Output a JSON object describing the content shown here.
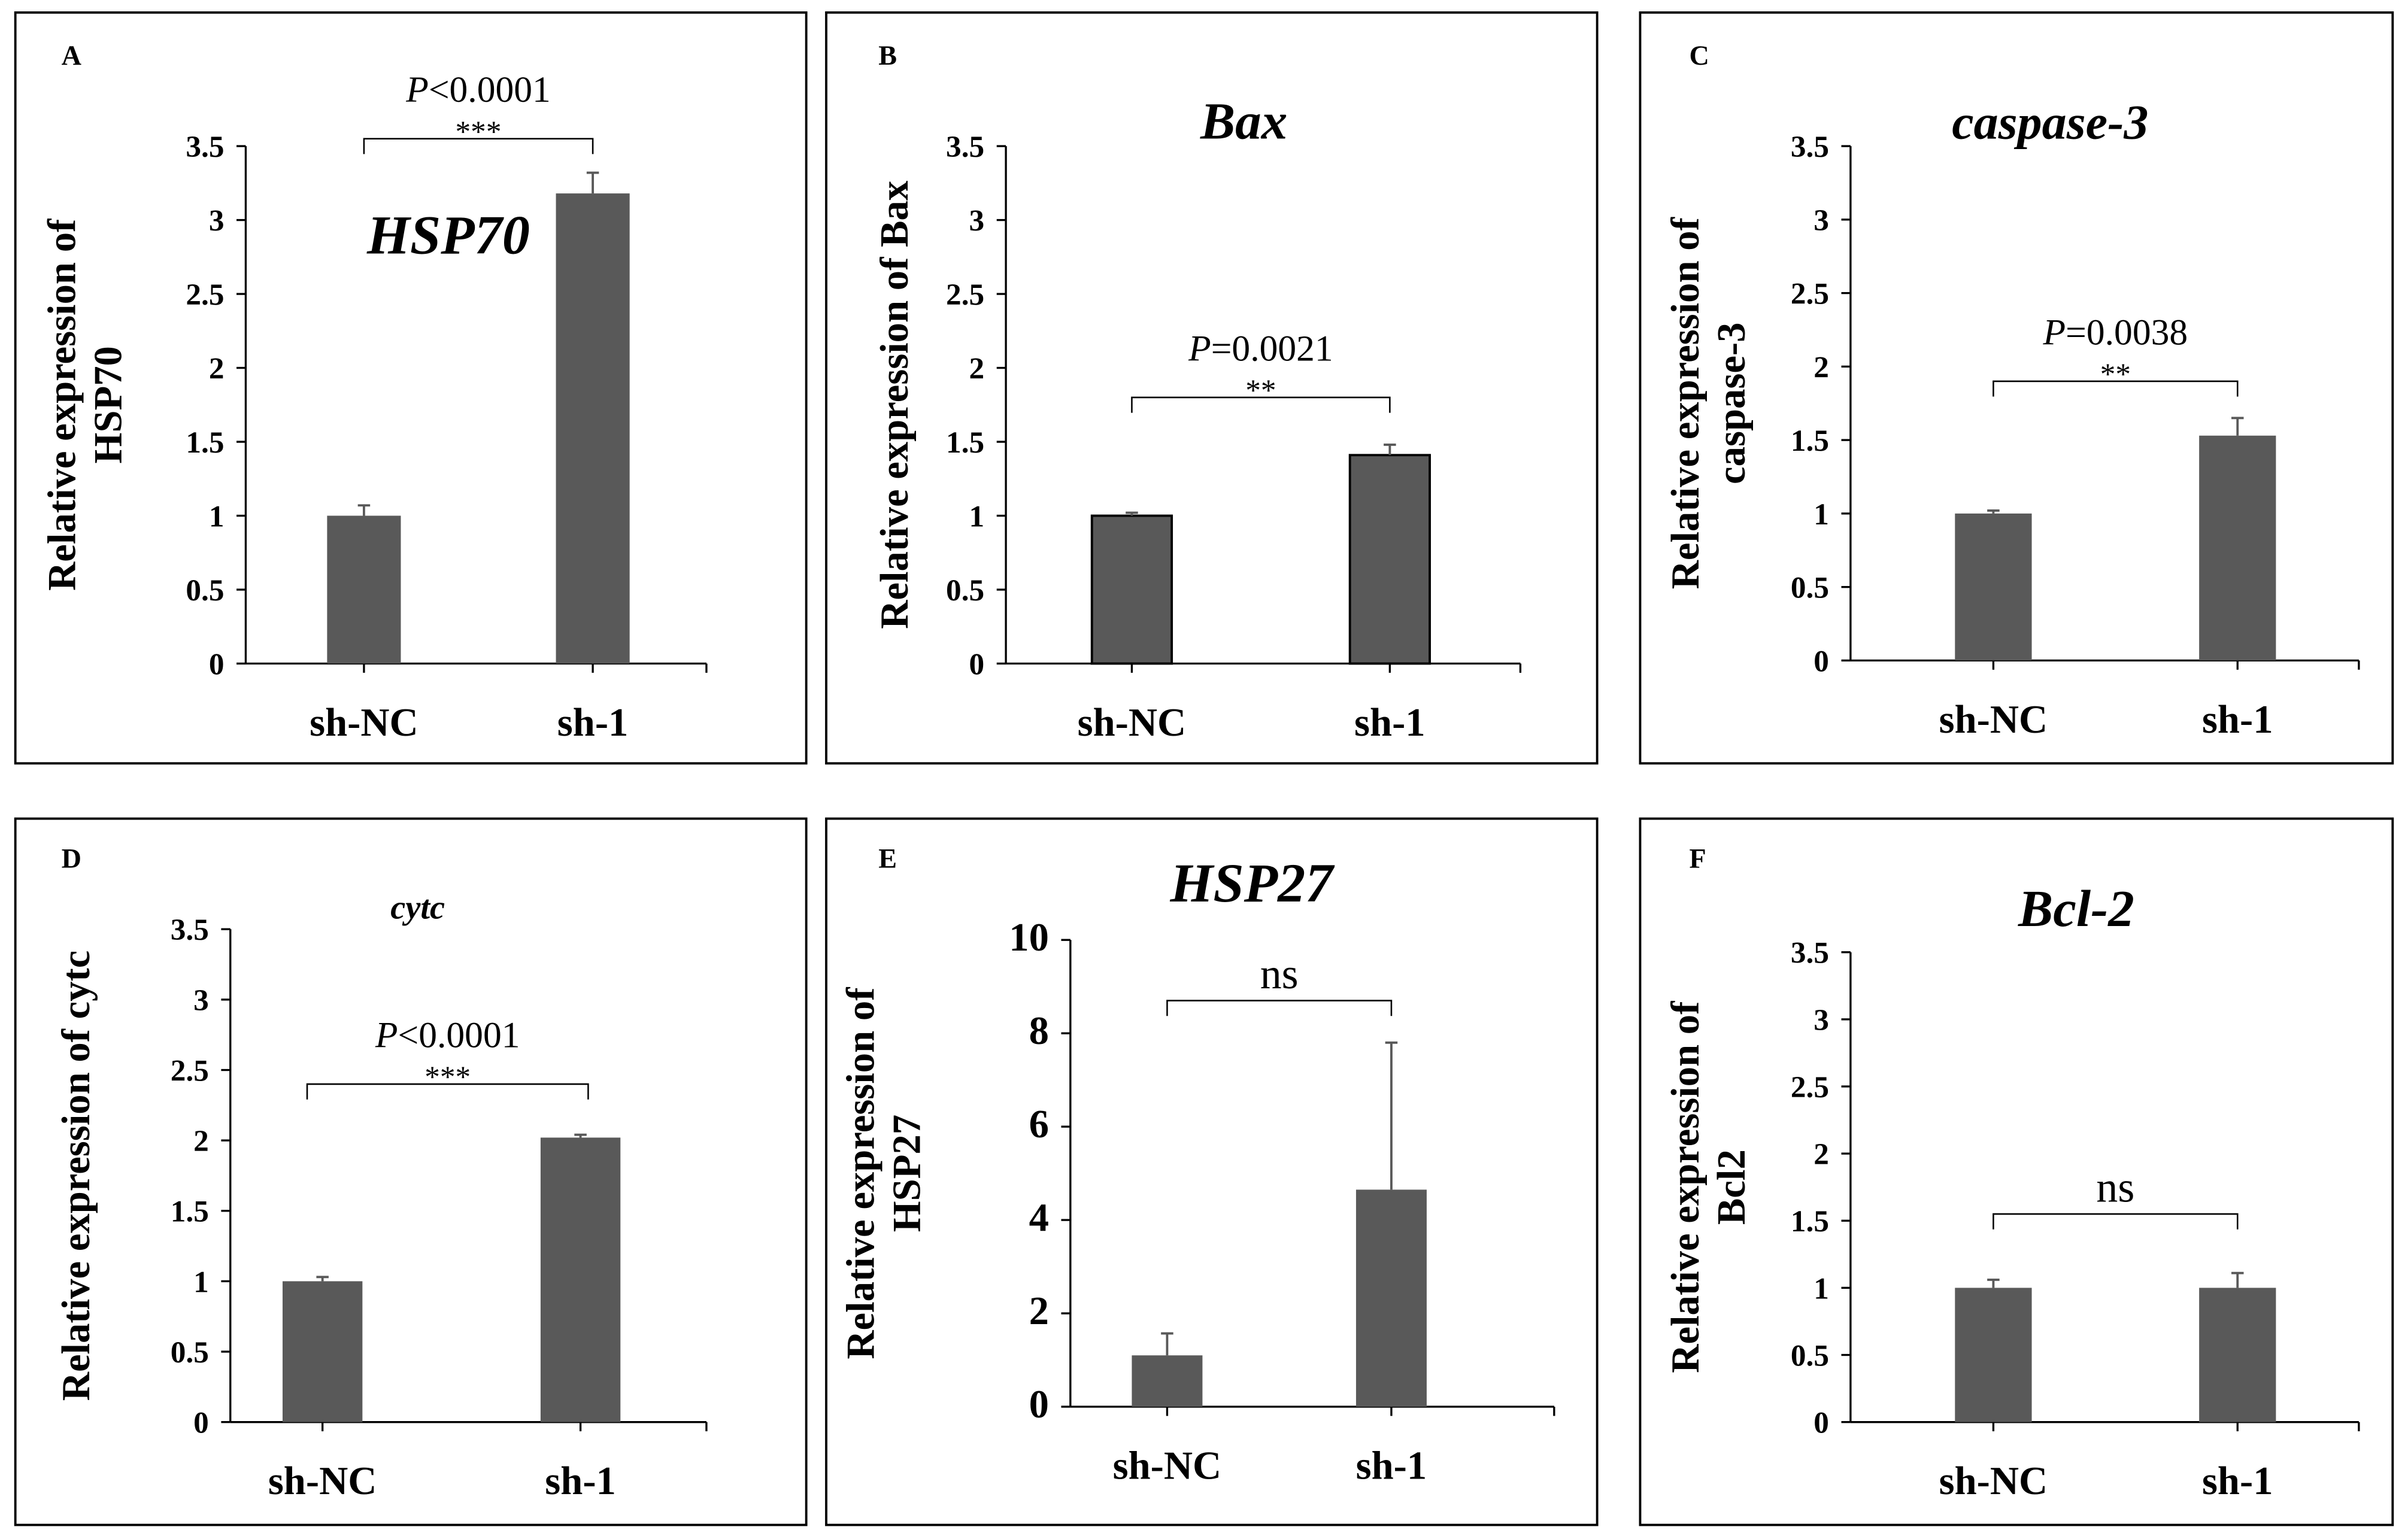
{
  "chart_data": [
    {
      "panel": "A",
      "type": "bar",
      "title": "HSP70",
      "ylabel": [
        "Relative expression of",
        "HSP70"
      ],
      "categories": [
        "sh-NC",
        "sh-1"
      ],
      "values": [
        1.0,
        3.18
      ],
      "errors": [
        0.07,
        0.14
      ],
      "ylim": [
        0,
        3.5
      ],
      "yticks": [
        "0",
        "0.5",
        "1",
        "1.5",
        "2",
        "2.5",
        "3",
        "3.5"
      ],
      "significance": {
        "p_prefix": "P",
        "p_value": "<0.0001",
        "stars": "***",
        "bracket_level": 3.55
      },
      "bar_color": "#595959"
    },
    {
      "panel": "B",
      "type": "bar",
      "title": "Bax",
      "ylabel": [
        "Relative expression of Bax"
      ],
      "categories": [
        "sh-NC",
        "sh-1"
      ],
      "values": [
        1.0,
        1.41
      ],
      "errors": [
        0.02,
        0.07
      ],
      "ylim": [
        0,
        3.5
      ],
      "yticks": [
        "0",
        "0.5",
        "1",
        "1.5",
        "2",
        "2.5",
        "3",
        "3.5"
      ],
      "significance": {
        "p_prefix": "P",
        "p_value": "=0.0021",
        "stars": "**",
        "bracket_level": 1.8
      },
      "bar_color": "#595959"
    },
    {
      "panel": "C",
      "type": "bar",
      "title": "caspase-3",
      "ylabel": [
        "Relative expression of",
        "caspase-3"
      ],
      "categories": [
        "sh-NC",
        "sh-1"
      ],
      "values": [
        1.0,
        1.53
      ],
      "errors": [
        0.02,
        0.12
      ],
      "ylim": [
        0,
        3.5
      ],
      "yticks": [
        "0",
        "0.5",
        "1",
        "1.5",
        "2",
        "2.5",
        "3",
        "3.5"
      ],
      "significance": {
        "p_prefix": "P",
        "p_value": "=0.0038",
        "stars": "**",
        "bracket_level": 1.9
      },
      "bar_color": "#595959"
    },
    {
      "panel": "D",
      "type": "bar",
      "title": "cytc",
      "ylabel": [
        "Relative expression of cytc"
      ],
      "categories": [
        "sh-NC",
        "sh-1"
      ],
      "values": [
        1.0,
        2.02
      ],
      "errors": [
        0.03,
        0.02
      ],
      "ylim": [
        0,
        3.5
      ],
      "yticks": [
        "0",
        "0.5",
        "1",
        "1.5",
        "2",
        "2.5",
        "3",
        "3.5"
      ],
      "significance": {
        "p_prefix": "P",
        "p_value": "<0.0001",
        "stars": "***",
        "bracket_level": 2.4
      },
      "bar_color": "#595959"
    },
    {
      "panel": "E",
      "type": "bar",
      "title": "HSP27",
      "ylabel": [
        "Relative expression of",
        "HSP27"
      ],
      "categories": [
        "sh-NC",
        "sh-1"
      ],
      "values": [
        1.1,
        4.65
      ],
      "errors": [
        0.47,
        3.15
      ],
      "ylim": [
        0,
        10
      ],
      "yticks": [
        "0",
        "2",
        "4",
        "6",
        "8",
        "10"
      ],
      "significance": {
        "stars": "ns",
        "bracket_level": 8.7
      },
      "bar_color": "#595959"
    },
    {
      "panel": "F",
      "type": "bar",
      "title": "Bcl-2",
      "ylabel": [
        "Relative expression of",
        "Bcl2"
      ],
      "categories": [
        "sh-NC",
        "sh-1"
      ],
      "values": [
        1.0,
        1.0
      ],
      "errors": [
        0.06,
        0.11
      ],
      "ylim": [
        0,
        3.5
      ],
      "yticks": [
        "0",
        "0.5",
        "1",
        "1.5",
        "2",
        "2.5",
        "3",
        "3.5"
      ],
      "significance": {
        "stars": "ns",
        "bracket_level": 1.55
      },
      "bar_color": "#595959"
    }
  ]
}
